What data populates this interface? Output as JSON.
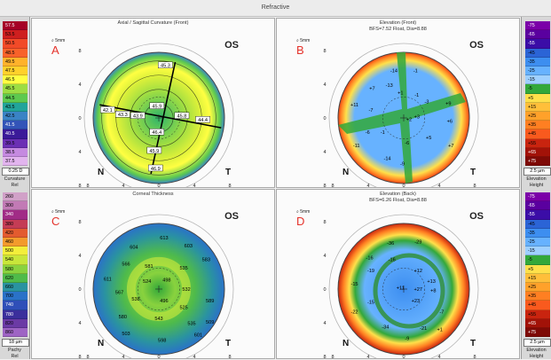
{
  "window_title": "Refractive",
  "colors": {
    "curvature_scale": [
      "#a50026",
      "#ce1f1f",
      "#e6383a",
      "#f14a28",
      "#f8622a",
      "#ff8a2b",
      "#ffb22b",
      "#ffd12b",
      "#ffff42",
      "#d8ef3a",
      "#9ddd43",
      "#5dc94f",
      "#2fb46a",
      "#22a49a",
      "#3a83c5",
      "#3354b8",
      "#2630a0",
      "#3b1a99",
      "#6b2fb4",
      "#9b59cc",
      "#c58ae0",
      "#e2b4ee"
    ],
    "elevation_scale": [
      "#7b00a8",
      "#5a009f",
      "#3b0da7",
      "#2a3fb5",
      "#2b64d6",
      "#3d8ef0",
      "#67b2ff",
      "#9fd0ff",
      "#33a83a",
      "#f5f54a",
      "#ffe04a",
      "#ffbf3a",
      "#ffa12a",
      "#ff7f22",
      "#f95a1e",
      "#e63d16",
      "#c9240f",
      "#a21208",
      "#7e0a06"
    ],
    "pachy_scale": [
      "#d1a1c8",
      "#c27ab5",
      "#b24e9f",
      "#a12c86",
      "#c43c55",
      "#e35b2f",
      "#f39a2c",
      "#f8c52e",
      "#f3ee3a",
      "#c8e63a",
      "#89d23e",
      "#4fbb4a",
      "#33a86a",
      "#2a93a0",
      "#2a72c8",
      "#2f4fb8",
      "#3b2f9c",
      "#522a8f",
      "#6b3aa5",
      "#9e64c4"
    ]
  },
  "left_scale_top": {
    "values": [
      "57.5",
      "53.5",
      "50.5",
      "48.5",
      "49.5",
      "47.5",
      "46.5",
      "45.5",
      "44.5",
      "43.5",
      "42.5",
      "41.5",
      "40.5",
      "39.5",
      "38.5",
      "37.5"
    ],
    "step": "0.25 D",
    "label": "Curvature",
    "mode": "Rel"
  },
  "left_scale_bottom": {
    "values": [
      "260",
      "300",
      "340",
      "380",
      "420",
      "460",
      "500",
      "540",
      "580",
      "620",
      "660",
      "700",
      "740",
      "780",
      "820",
      "860"
    ],
    "step": "18 µm",
    "label": "Pachy",
    "mode": "Rel"
  },
  "right_scale_top": {
    "values": [
      "-75",
      "-65",
      "-55",
      "-45",
      "-35",
      "-25",
      "-15",
      "-5",
      "+5",
      "+15",
      "+25",
      "+35",
      "+45",
      "+55",
      "+65",
      "+75"
    ],
    "step": "2.5 µm",
    "label": "Elevation",
    "mode": "Height"
  },
  "right_scale_bottom": {
    "values": [
      "-75",
      "-65",
      "-55",
      "-45",
      "-35",
      "-25",
      "-15",
      "-5",
      "+5",
      "+15",
      "+25",
      "+35",
      "+45",
      "+55",
      "+65",
      "+75"
    ],
    "step": "2.5 µm",
    "label": "Elevation",
    "mode": "Height"
  },
  "panels": {
    "A": {
      "letter": "A",
      "title": "Axial / Sagittal Curvature (Front)",
      "eye": "OS",
      "nasal": "N",
      "temporal": "T",
      "zoom": "5mm",
      "values": [
        "45.3",
        "42.1",
        "43.3",
        "43.9",
        "45.9",
        "45.8",
        "44.4",
        "46.4",
        "45.9",
        "46.9"
      ]
    },
    "B": {
      "letter": "B",
      "title": "Elevation (Front)",
      "subtitle": "BFS=7.52 Float, Dia=8.88",
      "eye": "OS",
      "nasal": "N",
      "temporal": "T",
      "zoom": "5mm",
      "values": [
        "-14",
        "-1",
        "-13",
        "+7",
        "+1",
        "-1",
        "-3",
        "+9",
        "+11",
        "-7",
        "+6",
        "+3",
        "-6",
        "-1",
        "+2",
        "+7",
        "-11",
        "-14",
        "-9",
        "+5",
        "-6"
      ]
    },
    "C": {
      "letter": "C",
      "title": "Corneal Thickness",
      "eye": "OS",
      "nasal": "N",
      "temporal": "T",
      "zoom": "5mm",
      "values": [
        "613",
        "603",
        "604",
        "566",
        "583",
        "611",
        "581",
        "535",
        "567",
        "524",
        "498",
        "532",
        "589",
        "538",
        "496",
        "525",
        "580",
        "543",
        "535",
        "601",
        "503",
        "598",
        "509"
      ]
    },
    "D": {
      "letter": "D",
      "title": "Elevation (Back)",
      "subtitle": "BFS=6.26 Float, Dia=8.88",
      "eye": "OS",
      "nasal": "N",
      "temporal": "T",
      "zoom": "5mm",
      "values": [
        "-36",
        "-29",
        "-16",
        "-16",
        "-19",
        "+12",
        "-15",
        "+13",
        "+11",
        "+27",
        "+8",
        "+23",
        "-15",
        "-22",
        "-7",
        "-34",
        "-21",
        "+1",
        "-9"
      ]
    }
  },
  "axis": {
    "ticks": [
      "8",
      "4",
      "0",
      "4",
      "8"
    ],
    "vticks": [
      "8",
      "4",
      "0",
      "4",
      "8"
    ]
  }
}
